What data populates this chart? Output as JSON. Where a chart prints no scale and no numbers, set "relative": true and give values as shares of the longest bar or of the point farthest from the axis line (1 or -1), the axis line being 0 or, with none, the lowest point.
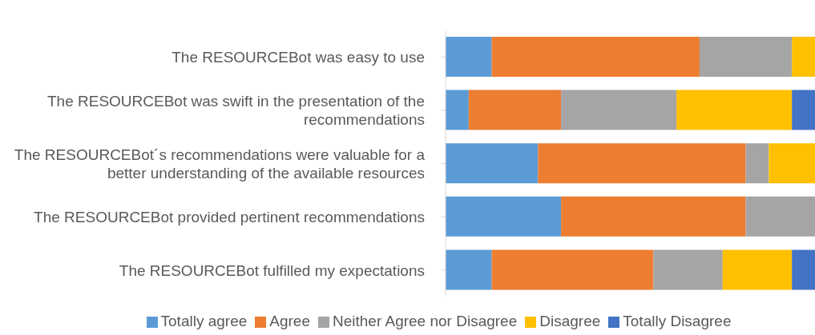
{
  "chart_data": {
    "type": "bar",
    "orientation": "horizontal",
    "stacked": true,
    "relative": true,
    "legend": "bottom",
    "categories": [
      "The RESOURCEBot was easy to use",
      "The RESOURCEBot was swift in the presentation of the recommendations",
      "The RESOURCEBot´s recommendations were valuable for a better understanding of the available resources",
      "The RESOURCEBot provided pertinent recommendations",
      "The RESOURCEBot fulfilled my expectations"
    ],
    "series": [
      {
        "name": "Totally agree",
        "color": "#5b9bd5",
        "values": [
          0.125,
          0.0625,
          0.25,
          0.3125,
          0.125
        ]
      },
      {
        "name": "Agree",
        "color": "#ed7d31",
        "values": [
          0.5625,
          0.25,
          0.5625,
          0.5,
          0.4375
        ]
      },
      {
        "name": "Neither Agree nor Disagree",
        "color": "#a5a5a5",
        "values": [
          0.25,
          0.3125,
          0.0625,
          0.1875,
          0.1875
        ]
      },
      {
        "name": "Disagree",
        "color": "#ffc000",
        "values": [
          0.0625,
          0.3125,
          0.125,
          null,
          0.1875
        ]
      },
      {
        "name": "Totally Disagree",
        "color": "#4472c4",
        "values": [
          null,
          0.0625,
          null,
          null,
          0.0625
        ]
      }
    ]
  }
}
